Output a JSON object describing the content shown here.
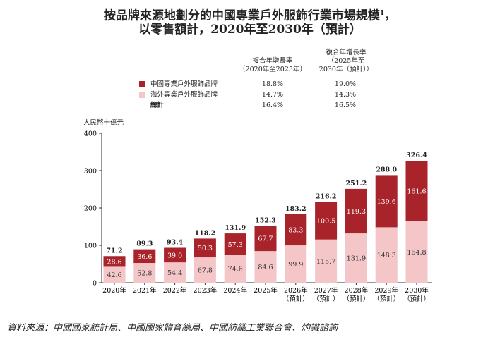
{
  "title": {
    "line1": "按品牌來源地劃分的中國專業戶外服飾行業市場規模",
    "sup": "1",
    "line1_suffix": "，",
    "line2": "以零售額計，2020年至2030年（預計）"
  },
  "cagr_table": {
    "header1": [
      "複合年增長率",
      "（2020年至2025年）"
    ],
    "header2": [
      "複合年增長率",
      "（2025年至",
      "2030年（預計））"
    ],
    "rows": [
      {
        "label": "中國專業戶外服飾品牌",
        "color": "#a8232a",
        "cagr1": "18.8%",
        "cagr2": "19.0%"
      },
      {
        "label": "海外專業戶外服飾品牌",
        "color": "#f4c6c8",
        "cagr1": "14.7%",
        "cagr2": "14.3%"
      },
      {
        "label": "總計",
        "color": "",
        "cagr1": "16.4%",
        "cagr2": "16.5%"
      }
    ]
  },
  "chart_data": {
    "type": "bar",
    "stacked": true,
    "ylabel": "人民幣十億元",
    "ylim": [
      0,
      400
    ],
    "yticks": [
      "0",
      "100",
      "200",
      "300",
      "400"
    ],
    "categories": [
      [
        "2020年"
      ],
      [
        "2021年"
      ],
      [
        "2022年"
      ],
      [
        "2023年"
      ],
      [
        "2024年"
      ],
      [
        "2025年"
      ],
      [
        "2026年",
        "（預計）"
      ],
      [
        "2027年",
        "（預計）"
      ],
      [
        "2028年",
        "（預計）"
      ],
      [
        "2029年",
        "（預計）"
      ],
      [
        "2030年",
        "（預計）"
      ]
    ],
    "series": [
      {
        "name": "海外專業戶外服飾品牌",
        "color": "#f4c6c8",
        "values": [
          42.6,
          52.8,
          54.4,
          67.8,
          74.6,
          84.6,
          99.9,
          115.7,
          131.9,
          148.3,
          164.8
        ],
        "labels": [
          "42.6",
          "52.8",
          "54.4",
          "67.8",
          "74.6",
          "84.6",
          "99.9",
          "115.7",
          "131.9",
          "148.3",
          "164.8"
        ]
      },
      {
        "name": "中國專業戶外服飾品牌",
        "color": "#a8232a",
        "values": [
          28.6,
          36.6,
          39.0,
          50.3,
          57.3,
          67.7,
          83.3,
          100.5,
          119.3,
          139.6,
          161.6
        ],
        "labels": [
          "28.6",
          "36.6",
          "39.0",
          "50.3",
          "57.3",
          "67.7",
          "83.3",
          "100.5",
          "119.3",
          "139.6",
          "161.6"
        ]
      }
    ],
    "totals": [
      "71.2",
      "89.3",
      "93.4",
      "118.2",
      "131.9",
      "152.3",
      "183.2",
      "216.2",
      "251.2",
      "288.0",
      "326.4"
    ],
    "grid": false
  },
  "source": "資料來源：中國國家統計局、中國國家體育總局、中國紡織工業聯合會、灼識諮詢"
}
